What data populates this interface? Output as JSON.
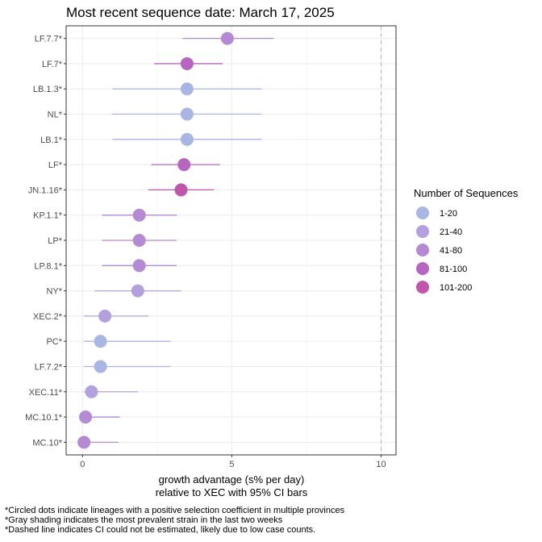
{
  "chart_data": {
    "type": "scatter",
    "title": "Most recent sequence date: March 17, 2025",
    "xlabel_line1": "growth advantage (s% per day)",
    "xlabel_line2": "relative to  XEC  with 95% CI bars",
    "xlim": [
      -0.55,
      10.5
    ],
    "xticks": [
      "0",
      "5",
      "10"
    ],
    "xtick_values": [
      0,
      5,
      10
    ],
    "dashed_line_x": 10,
    "grid": true,
    "legend_title": "Number of Sequences",
    "legend_position": "right",
    "legend": [
      {
        "label": "1-20",
        "color": "#a9b5e3"
      },
      {
        "label": "21-40",
        "color": "#b2a1de"
      },
      {
        "label": "41-80",
        "color": "#b589d3"
      },
      {
        "label": "81-100",
        "color": "#b865c2"
      },
      {
        "label": "101-200",
        "color": "#c055ab"
      }
    ],
    "lineages": [
      {
        "name": "LF.7.7*",
        "value": 4.85,
        "ci": [
          3.35,
          6.4
        ],
        "color": "#b589d3"
      },
      {
        "name": "LF.7*",
        "value": 3.5,
        "ci": [
          2.4,
          4.7
        ],
        "color": "#b865c2"
      },
      {
        "name": "LB.1.3*",
        "value": 3.5,
        "ci": [
          1.0,
          6.0
        ],
        "color": "#a9b5e3"
      },
      {
        "name": "NL*",
        "value": 3.5,
        "ci": [
          1.0,
          6.0
        ],
        "color": "#a9b5e3"
      },
      {
        "name": "LB.1*",
        "value": 3.5,
        "ci": [
          1.0,
          6.0
        ],
        "color": "#a9b5e3"
      },
      {
        "name": "LF*",
        "value": 3.4,
        "ci": [
          2.3,
          4.6
        ],
        "color": "#b865c2"
      },
      {
        "name": "JN.1.16*",
        "value": 3.3,
        "ci": [
          2.2,
          4.4
        ],
        "color": "#c055ab"
      },
      {
        "name": "KP.1.1*",
        "value": 1.9,
        "ci": [
          0.65,
          3.15
        ],
        "color": "#b589d3"
      },
      {
        "name": "LP*",
        "value": 1.9,
        "ci": [
          0.65,
          3.15
        ],
        "color": "#b589d3"
      },
      {
        "name": "LP.8.1*",
        "value": 1.9,
        "ci": [
          0.65,
          3.15
        ],
        "color": "#b589d3"
      },
      {
        "name": "NY*",
        "value": 1.85,
        "ci": [
          0.4,
          3.3
        ],
        "color": "#b2a1de"
      },
      {
        "name": "XEC.2*",
        "value": 0.75,
        "ci": [
          0.05,
          2.2
        ],
        "color": "#b2a1de"
      },
      {
        "name": "PC*",
        "value": 0.6,
        "ci": [
          0.05,
          2.95
        ],
        "color": "#a9b5e3"
      },
      {
        "name": "LF.7.2*",
        "value": 0.6,
        "ci": [
          0.05,
          2.95
        ],
        "color": "#a9b5e3"
      },
      {
        "name": "XEC.11*",
        "value": 0.3,
        "ci": [
          0.05,
          1.85
        ],
        "color": "#b2a1de"
      },
      {
        "name": "MC.10.1*",
        "value": 0.1,
        "ci": [
          0.05,
          1.25
        ],
        "color": "#b589d3"
      },
      {
        "name": "MC.10*",
        "value": 0.05,
        "ci": [
          0.05,
          1.2
        ],
        "color": "#b589d3"
      }
    ],
    "footnotes": [
      "*Circled dots indicate lineages with a positive selection coefficient in multiple provinces",
      "*Gray shading indicates the most prevalent strain in the last two weeks",
      "*Dashed line indicates CI could not be estimated, likely due to low case counts."
    ]
  }
}
